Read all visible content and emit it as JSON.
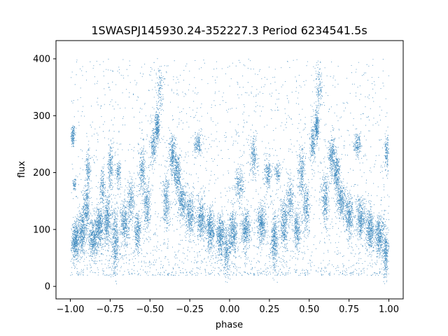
{
  "chart_data": {
    "type": "scatter",
    "title": "1SWASPJ145930.24-352227.3 Period 6234541.5s",
    "xlabel": "phase",
    "ylabel": "flux",
    "xlim": [
      -1.09,
      1.09
    ],
    "ylim": [
      -22,
      432
    ],
    "xticks": [
      -1.0,
      -0.75,
      -0.5,
      -0.25,
      0.0,
      0.25,
      0.5,
      0.75,
      1.0
    ],
    "xtick_labels": [
      "−1.00",
      "−0.75",
      "−0.50",
      "−0.25",
      "0.00",
      "0.25",
      "0.50",
      "0.75",
      "1.00"
    ],
    "yticks": [
      0,
      100,
      200,
      300,
      400
    ],
    "ytick_labels": [
      "0",
      "100",
      "200",
      "300",
      "400"
    ],
    "grid": false,
    "marker_color": "#1f77b4",
    "note_on_data": "phase-folded light curve; the half-cycle profile repeats with period 1 in phase",
    "clumps": [
      {
        "x": -0.985,
        "xw": 0.012,
        "y": 265,
        "yw": 18,
        "n": 140
      },
      {
        "x": -0.975,
        "xw": 0.01,
        "y": 180,
        "yw": 10,
        "n": 60
      },
      {
        "x": -0.97,
        "xw": 0.02,
        "y": 80,
        "yw": 28,
        "n": 420
      },
      {
        "x": -0.93,
        "xw": 0.025,
        "y": 95,
        "yw": 32,
        "n": 380
      },
      {
        "x": -0.9,
        "xw": 0.02,
        "y": 140,
        "yw": 30,
        "n": 260
      },
      {
        "x": -0.89,
        "xw": 0.015,
        "y": 205,
        "yw": 25,
        "n": 150
      },
      {
        "x": -0.86,
        "xw": 0.025,
        "y": 85,
        "yw": 30,
        "n": 380
      },
      {
        "x": -0.82,
        "xw": 0.025,
        "y": 105,
        "yw": 30,
        "n": 420
      },
      {
        "x": -0.8,
        "xw": 0.015,
        "y": 175,
        "yw": 30,
        "n": 150
      },
      {
        "x": -0.77,
        "xw": 0.025,
        "y": 115,
        "yw": 35,
        "n": 380
      },
      {
        "x": -0.75,
        "xw": 0.015,
        "y": 210,
        "yw": 30,
        "n": 180
      },
      {
        "x": -0.72,
        "xw": 0.02,
        "y": 80,
        "yw": 45,
        "n": 360
      },
      {
        "x": -0.7,
        "xw": 0.015,
        "y": 200,
        "yw": 20,
        "n": 120
      },
      {
        "x": -0.66,
        "xw": 0.025,
        "y": 110,
        "yw": 35,
        "n": 340
      },
      {
        "x": -0.62,
        "xw": 0.02,
        "y": 150,
        "yw": 30,
        "n": 200
      },
      {
        "x": -0.58,
        "xw": 0.02,
        "y": 95,
        "yw": 30,
        "n": 260
      },
      {
        "x": -0.55,
        "xw": 0.02,
        "y": 205,
        "yw": 35,
        "n": 220
      },
      {
        "x": -0.52,
        "xw": 0.02,
        "y": 140,
        "yw": 35,
        "n": 260
      },
      {
        "x": -0.48,
        "xw": 0.015,
        "y": 250,
        "yw": 30,
        "n": 200
      },
      {
        "x": -0.455,
        "xw": 0.012,
        "y": 280,
        "yw": 25,
        "n": 260
      },
      {
        "x": -0.44,
        "xw": 0.02,
        "y": 350,
        "yw": 35,
        "n": 120
      },
      {
        "x": -0.4,
        "xw": 0.02,
        "y": 150,
        "yw": 40,
        "n": 280
      },
      {
        "x": -0.36,
        "xw": 0.02,
        "y": 230,
        "yw": 30,
        "n": 260
      },
      {
        "x": -0.33,
        "xw": 0.02,
        "y": 200,
        "yw": 30,
        "n": 300
      },
      {
        "x": -0.3,
        "xw": 0.025,
        "y": 150,
        "yw": 25,
        "n": 320
      },
      {
        "x": -0.25,
        "xw": 0.025,
        "y": 125,
        "yw": 30,
        "n": 340
      },
      {
        "x": -0.2,
        "xw": 0.02,
        "y": 250,
        "yw": 15,
        "n": 160
      },
      {
        "x": -0.18,
        "xw": 0.025,
        "y": 120,
        "yw": 30,
        "n": 360
      },
      {
        "x": -0.12,
        "xw": 0.025,
        "y": 100,
        "yw": 30,
        "n": 400
      },
      {
        "x": -0.06,
        "xw": 0.025,
        "y": 90,
        "yw": 30,
        "n": 400
      },
      {
        "x": -0.02,
        "xw": 0.02,
        "y": 60,
        "yw": 35,
        "n": 260
      },
      {
        "x": 0.02,
        "xw": 0.025,
        "y": 95,
        "yw": 30,
        "n": 380
      },
      {
        "x": 0.06,
        "xw": 0.025,
        "y": 180,
        "yw": 25,
        "n": 200
      },
      {
        "x": 0.1,
        "xw": 0.025,
        "y": 100,
        "yw": 28,
        "n": 380
      },
      {
        "x": 0.15,
        "xw": 0.02,
        "y": 230,
        "yw": 30,
        "n": 200
      },
      {
        "x": 0.2,
        "xw": 0.025,
        "y": 110,
        "yw": 30,
        "n": 380
      },
      {
        "x": 0.24,
        "xw": 0.02,
        "y": 200,
        "yw": 25,
        "n": 180
      },
      {
        "x": 0.28,
        "xw": 0.02,
        "y": 80,
        "yw": 40,
        "n": 380
      },
      {
        "x": 0.3,
        "xw": 0.015,
        "y": 200,
        "yw": 15,
        "n": 100
      },
      {
        "x": 0.34,
        "xw": 0.025,
        "y": 110,
        "yw": 35,
        "n": 340
      },
      {
        "x": 0.38,
        "xw": 0.02,
        "y": 150,
        "yw": 30,
        "n": 200
      },
      {
        "x": 0.42,
        "xw": 0.02,
        "y": 100,
        "yw": 30,
        "n": 260
      },
      {
        "x": 0.45,
        "xw": 0.02,
        "y": 205,
        "yw": 35,
        "n": 220
      },
      {
        "x": 0.48,
        "xw": 0.02,
        "y": 140,
        "yw": 35,
        "n": 260
      },
      {
        "x": 0.52,
        "xw": 0.015,
        "y": 250,
        "yw": 30,
        "n": 200
      },
      {
        "x": 0.545,
        "xw": 0.012,
        "y": 280,
        "yw": 25,
        "n": 260
      },
      {
        "x": 0.56,
        "xw": 0.02,
        "y": 350,
        "yw": 35,
        "n": 120
      },
      {
        "x": 0.6,
        "xw": 0.02,
        "y": 150,
        "yw": 40,
        "n": 280
      },
      {
        "x": 0.64,
        "xw": 0.02,
        "y": 230,
        "yw": 30,
        "n": 260
      },
      {
        "x": 0.67,
        "xw": 0.02,
        "y": 200,
        "yw": 30,
        "n": 300
      },
      {
        "x": 0.7,
        "xw": 0.025,
        "y": 150,
        "yw": 25,
        "n": 320
      },
      {
        "x": 0.75,
        "xw": 0.025,
        "y": 125,
        "yw": 30,
        "n": 340
      },
      {
        "x": 0.8,
        "xw": 0.02,
        "y": 250,
        "yw": 15,
        "n": 160
      },
      {
        "x": 0.82,
        "xw": 0.025,
        "y": 120,
        "yw": 30,
        "n": 360
      },
      {
        "x": 0.88,
        "xw": 0.025,
        "y": 100,
        "yw": 30,
        "n": 400
      },
      {
        "x": 0.94,
        "xw": 0.025,
        "y": 90,
        "yw": 30,
        "n": 400
      },
      {
        "x": 0.98,
        "xw": 0.015,
        "y": 60,
        "yw": 35,
        "n": 260
      },
      {
        "x": 0.985,
        "xw": 0.012,
        "y": 235,
        "yw": 25,
        "n": 140
      }
    ],
    "background_n": 2600
  }
}
